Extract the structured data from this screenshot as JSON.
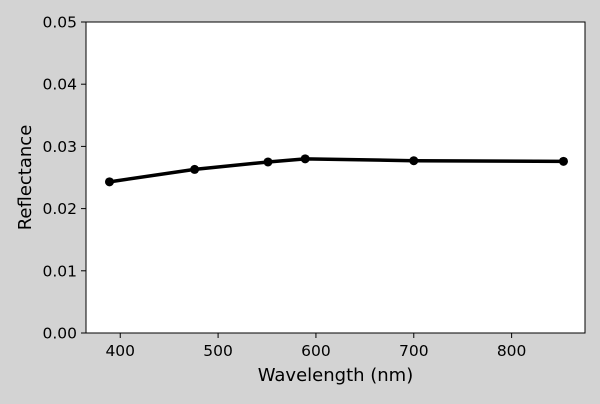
{
  "colors": {
    "figure_background": "#d3d3d3",
    "plot_background": "#ffffff",
    "line": "#000000"
  },
  "chart_data": {
    "type": "line",
    "title": "",
    "xlabel": "Wavelength (nm)",
    "ylabel": "Reflectance",
    "xlim": [
      365,
      875
    ],
    "ylim": [
      0.0,
      0.05
    ],
    "xticks": [
      400,
      500,
      600,
      700,
      800
    ],
    "xtick_labels": [
      "400",
      "500",
      "600",
      "700",
      "800"
    ],
    "yticks": [
      0.0,
      0.01,
      0.02,
      0.03,
      0.04,
      0.05
    ],
    "ytick_labels": [
      "0.00",
      "0.01",
      "0.02",
      "0.03",
      "0.04",
      "0.05"
    ],
    "grid": false,
    "legend": "none",
    "series": [
      {
        "marker": "circle",
        "color": "#000000",
        "x": [
          389,
          476,
          551,
          589,
          700,
          853
        ],
        "y": [
          0.0243,
          0.0263,
          0.0275,
          0.028,
          0.0277,
          0.0276
        ]
      }
    ]
  }
}
